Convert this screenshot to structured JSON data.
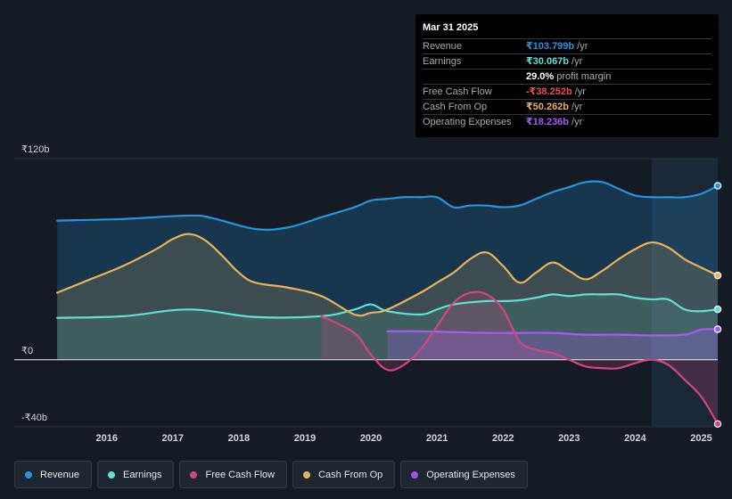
{
  "tooltip": {
    "date": "Mar 31 2025",
    "rows": [
      {
        "label": "Revenue",
        "value": "₹103.799b",
        "unit": "/yr",
        "color": "#2394e0"
      },
      {
        "label": "Earnings",
        "value": "₹30.067b",
        "unit": "/yr",
        "color": "#5ce1d0"
      },
      {
        "label": "",
        "value": "29.0%",
        "unit": "profit margin",
        "color": "#ffffff"
      },
      {
        "label": "Free Cash Flow",
        "value": "-₹38.252b",
        "unit": "/yr",
        "color": "#ee4c5d"
      },
      {
        "label": "Cash From Op",
        "value": "₹50.262b",
        "unit": "/yr",
        "color": "#e8b15c"
      },
      {
        "label": "Operating Expenses",
        "value": "₹18.236b",
        "unit": "/yr",
        "color": "#a35cf0"
      }
    ]
  },
  "legend": [
    {
      "label": "Revenue",
      "color": "#2d8fe0"
    },
    {
      "label": "Earnings",
      "color": "#5ce1d0"
    },
    {
      "label": "Free Cash Flow",
      "color": "#d0457e"
    },
    {
      "label": "Cash From Op",
      "color": "#e8b15c"
    },
    {
      "label": "Operating Expenses",
      "color": "#a350e8"
    }
  ],
  "chart_data": {
    "type": "area",
    "title": "",
    "xlabel": "",
    "ylabel": "",
    "ylim": [
      -40,
      120
    ],
    "y_tick_labels": [
      {
        "label": "₹120b",
        "value": 120
      },
      {
        "label": "₹0",
        "value": 0
      },
      {
        "label": "-₹40b",
        "value": -40
      }
    ],
    "x_ticks": [
      {
        "label": "2016",
        "value": 2016
      },
      {
        "label": "2017",
        "value": 2017
      },
      {
        "label": "2018",
        "value": 2018
      },
      {
        "label": "2019",
        "value": 2019
      },
      {
        "label": "2020",
        "value": 2020
      },
      {
        "label": "2021",
        "value": 2021
      },
      {
        "label": "2022",
        "value": 2022
      },
      {
        "label": "2023",
        "value": 2023
      },
      {
        "label": "2024",
        "value": 2024
      },
      {
        "label": "2025",
        "value": 2025
      }
    ],
    "xlim": [
      2014.6,
      2025.25
    ],
    "highlight_from": 2024.25,
    "series": [
      {
        "name": "Revenue",
        "color": "#2394e0",
        "points": [
          [
            2015.25,
            83
          ],
          [
            2016.25,
            84
          ],
          [
            2017.25,
            86
          ],
          [
            2017.6,
            84.5
          ],
          [
            2018.25,
            78
          ],
          [
            2018.75,
            79
          ],
          [
            2019.25,
            85
          ],
          [
            2019.75,
            91
          ],
          [
            2020.0,
            95
          ],
          [
            2020.25,
            96
          ],
          [
            2020.5,
            97
          ],
          [
            2020.75,
            97
          ],
          [
            2021.0,
            97
          ],
          [
            2021.25,
            91
          ],
          [
            2021.5,
            92
          ],
          [
            2021.75,
            92
          ],
          [
            2022.0,
            91
          ],
          [
            2022.25,
            92
          ],
          [
            2022.5,
            96
          ],
          [
            2022.75,
            100
          ],
          [
            2023.0,
            103
          ],
          [
            2023.25,
            106
          ],
          [
            2023.5,
            106
          ],
          [
            2023.75,
            102
          ],
          [
            2024.0,
            98
          ],
          [
            2024.25,
            97
          ],
          [
            2024.5,
            97
          ],
          [
            2024.75,
            97
          ],
          [
            2025.0,
            99
          ],
          [
            2025.25,
            103.8
          ]
        ]
      },
      {
        "name": "Earnings",
        "color": "#5ce1d0",
        "points": [
          [
            2015.25,
            25
          ],
          [
            2016.25,
            26
          ],
          [
            2017.25,
            30
          ],
          [
            2018.25,
            25.5
          ],
          [
            2019.25,
            26
          ],
          [
            2019.75,
            30
          ],
          [
            2020.0,
            33
          ],
          [
            2020.25,
            29
          ],
          [
            2020.75,
            27
          ],
          [
            2021.0,
            30
          ],
          [
            2021.25,
            33
          ],
          [
            2021.75,
            35
          ],
          [
            2022.0,
            35
          ],
          [
            2022.25,
            35.5
          ],
          [
            2022.5,
            37
          ],
          [
            2022.75,
            39
          ],
          [
            2023.0,
            38
          ],
          [
            2023.25,
            39
          ],
          [
            2023.5,
            39
          ],
          [
            2023.75,
            39
          ],
          [
            2024.0,
            37
          ],
          [
            2024.25,
            36
          ],
          [
            2024.5,
            36
          ],
          [
            2024.75,
            30
          ],
          [
            2025.0,
            29
          ],
          [
            2025.25,
            30.1
          ]
        ]
      },
      {
        "name": "Cash From Op",
        "color": "#e8b15c",
        "points": [
          [
            2015.25,
            40
          ],
          [
            2015.75,
            48
          ],
          [
            2016.25,
            56
          ],
          [
            2016.75,
            66
          ],
          [
            2017.0,
            72
          ],
          [
            2017.25,
            75
          ],
          [
            2017.5,
            71
          ],
          [
            2017.75,
            62
          ],
          [
            2018.0,
            52
          ],
          [
            2018.25,
            46
          ],
          [
            2018.75,
            43
          ],
          [
            2019.25,
            38
          ],
          [
            2019.75,
            27
          ],
          [
            2020.0,
            28
          ],
          [
            2020.25,
            30
          ],
          [
            2020.75,
            40
          ],
          [
            2021.0,
            46
          ],
          [
            2021.25,
            52
          ],
          [
            2021.5,
            60
          ],
          [
            2021.75,
            64
          ],
          [
            2022.0,
            56
          ],
          [
            2022.25,
            46
          ],
          [
            2022.5,
            52
          ],
          [
            2022.75,
            58
          ],
          [
            2023.0,
            53
          ],
          [
            2023.25,
            48
          ],
          [
            2023.5,
            53
          ],
          [
            2023.75,
            60
          ],
          [
            2024.0,
            66
          ],
          [
            2024.25,
            70
          ],
          [
            2024.5,
            67
          ],
          [
            2024.75,
            60
          ],
          [
            2025.0,
            55
          ],
          [
            2025.25,
            50.3
          ]
        ]
      },
      {
        "name": "Free Cash Flow",
        "color": "#d0457e",
        "points": [
          [
            2019.25,
            26
          ],
          [
            2019.75,
            16
          ],
          [
            2020.0,
            3
          ],
          [
            2020.25,
            -6
          ],
          [
            2020.5,
            -3
          ],
          [
            2020.75,
            6
          ],
          [
            2021.0,
            20
          ],
          [
            2021.25,
            34
          ],
          [
            2021.5,
            40
          ],
          [
            2021.75,
            39
          ],
          [
            2022.0,
            30
          ],
          [
            2022.25,
            11
          ],
          [
            2022.5,
            6
          ],
          [
            2022.75,
            4
          ],
          [
            2023.0,
            0
          ],
          [
            2023.25,
            -4
          ],
          [
            2023.5,
            -5
          ],
          [
            2023.75,
            -5
          ],
          [
            2024.0,
            -2
          ],
          [
            2024.25,
            0
          ],
          [
            2024.5,
            -3
          ],
          [
            2024.75,
            -12
          ],
          [
            2025.0,
            -22
          ],
          [
            2025.25,
            -38.3
          ]
        ]
      },
      {
        "name": "Operating Expenses",
        "color": "#a35cf0",
        "points": [
          [
            2020.25,
            17
          ],
          [
            2020.75,
            17
          ],
          [
            2021.25,
            16.5
          ],
          [
            2021.75,
            16
          ],
          [
            2022.25,
            16
          ],
          [
            2022.75,
            16
          ],
          [
            2023.25,
            15
          ],
          [
            2023.75,
            15
          ],
          [
            2024.25,
            14.5
          ],
          [
            2024.75,
            15
          ],
          [
            2025.0,
            18
          ],
          [
            2025.25,
            18.2
          ]
        ]
      }
    ]
  }
}
